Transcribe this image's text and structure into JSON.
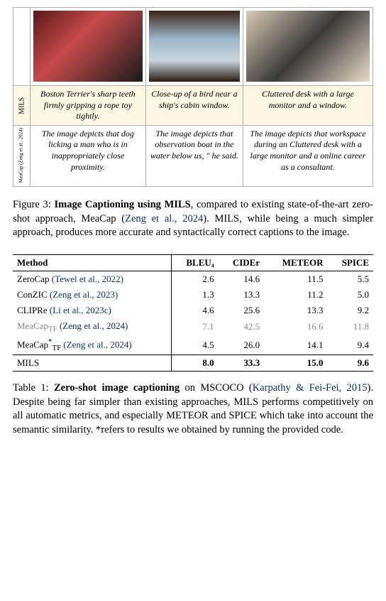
{
  "figure": {
    "row_labels": [
      "MILS",
      "MeaCap (Zeng et al., 2024)"
    ],
    "image_alts": [
      "dog with rope toy",
      "bird at ship window",
      "cluttered desk workspace"
    ],
    "mils_captions": [
      "Boston Terrier's sharp teeth firmly gripping a rope toy tightly.",
      "Close-up of a bird near a ship's cabin window.",
      "Cluttered desk with a large monitor and a window."
    ],
    "meacap_captions": [
      "The image depicts that dog licking a man who is in inappropriately close proximity.",
      "The image depicts that observation boat in the water below us, \" he said.",
      "The image depicts that workspace during an Cluttered desk with a large monitor and a online career as a consultant."
    ],
    "caption_prefix": "Figure 3: ",
    "caption_bold": "Image Captioning using MILS",
    "caption_rest_1": ", compared to existing state-of-the-art zero-shot approach, MeaCap (",
    "caption_cite": "Zeng et al., 2024",
    "caption_rest_2": "). MILS, while being a much simpler approach, produces more accurate and syntactically correct captions to the image."
  },
  "table": {
    "headers": [
      "Method",
      "BLEU₄",
      "CIDEr",
      "METEOR",
      "SPICE"
    ],
    "rows": [
      {
        "method": "ZeroCap",
        "cite": "(Tewel et al., 2022)",
        "vals": [
          "2.6",
          "14.6",
          "11.5",
          "5.5"
        ],
        "grey": false
      },
      {
        "method": "ConZIC",
        "cite": "(Zeng et al., 2023)",
        "vals": [
          "1.3",
          "13.3",
          "11.2",
          "5.0"
        ],
        "grey": false
      },
      {
        "method": "CLIPRe",
        "cite": "(Li et al., 2023c)",
        "vals": [
          "4.6",
          "25.6",
          "13.3",
          "9.2"
        ],
        "grey": false
      },
      {
        "method": "MeaCap_TF",
        "cite": "(Zeng et al., 2024)",
        "vals": [
          "7.1",
          "42.5",
          "16.6",
          "11.8"
        ],
        "grey": true,
        "sub": "TF"
      },
      {
        "method": "MeaCap*_TF",
        "cite": "(Zeng et al., 2024)",
        "vals": [
          "4.5",
          "26.0",
          "14.1",
          "9.4"
        ],
        "grey": false,
        "sub": "TF",
        "sup": "*"
      }
    ],
    "mils_row": {
      "method": "MILS",
      "vals": [
        "8.0",
        "33.3",
        "15.0",
        "9.6"
      ]
    },
    "caption_prefix": "Table 1: ",
    "caption_bold": "Zero-shot image captioning",
    "caption_rest_1": " on MSCOCO (",
    "caption_cite": "Karpathy & Fei-Fei, 2015",
    "caption_rest_2": "). Despite being far simpler than existing approaches, MILS performs competitively on all automatic metrics, and especially METEOR and SPICE which take into account the semantic similarity. *refers to results we obtained by running the provided code."
  }
}
